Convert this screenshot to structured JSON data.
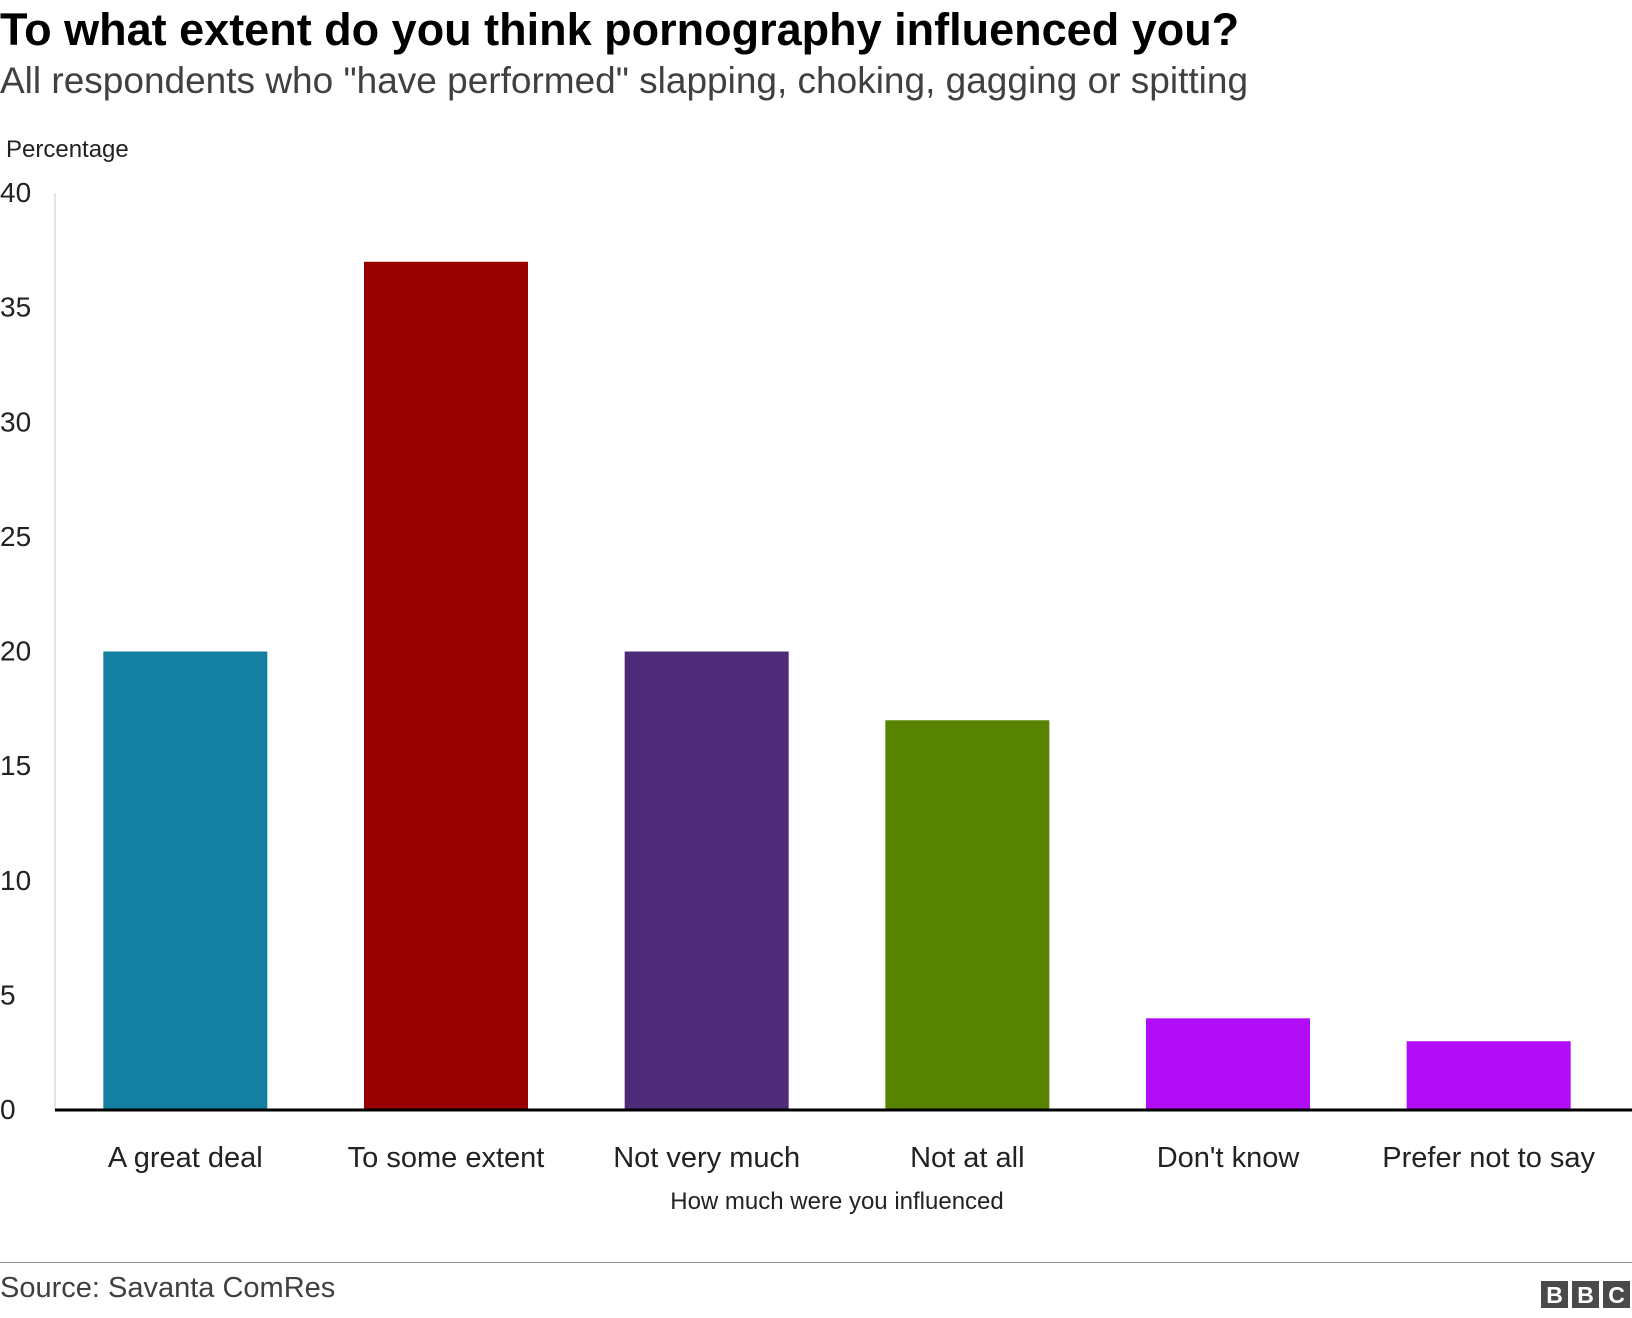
{
  "chart_data": {
    "type": "bar",
    "title": "To what extent do you think pornography influenced you?",
    "subtitle": "All respondents who \"have performed\" slapping, choking, gagging or spitting",
    "ylabel": "Percentage",
    "xlabel": "How much were you influenced",
    "categories": [
      "A great deal",
      "To some extent",
      "Not very much",
      "Not at all",
      "Don't know",
      "Prefer not to say"
    ],
    "values": [
      20,
      37,
      20,
      17,
      4,
      3
    ],
    "colors": [
      "#1380A1",
      "#990000",
      "#4D2B78",
      "#588300",
      "#B10EF7",
      "#B10EF7"
    ],
    "ylim": [
      0,
      40
    ],
    "yticks": [
      "0",
      "5",
      "10",
      "15",
      "20",
      "25",
      "30",
      "35",
      "40"
    ],
    "grid": false,
    "legend": "none"
  },
  "footer": {
    "source": "Source: Savanta ComRes",
    "logo_letters": [
      "B",
      "B",
      "C"
    ],
    "logo_color": "#4a4a4a"
  }
}
